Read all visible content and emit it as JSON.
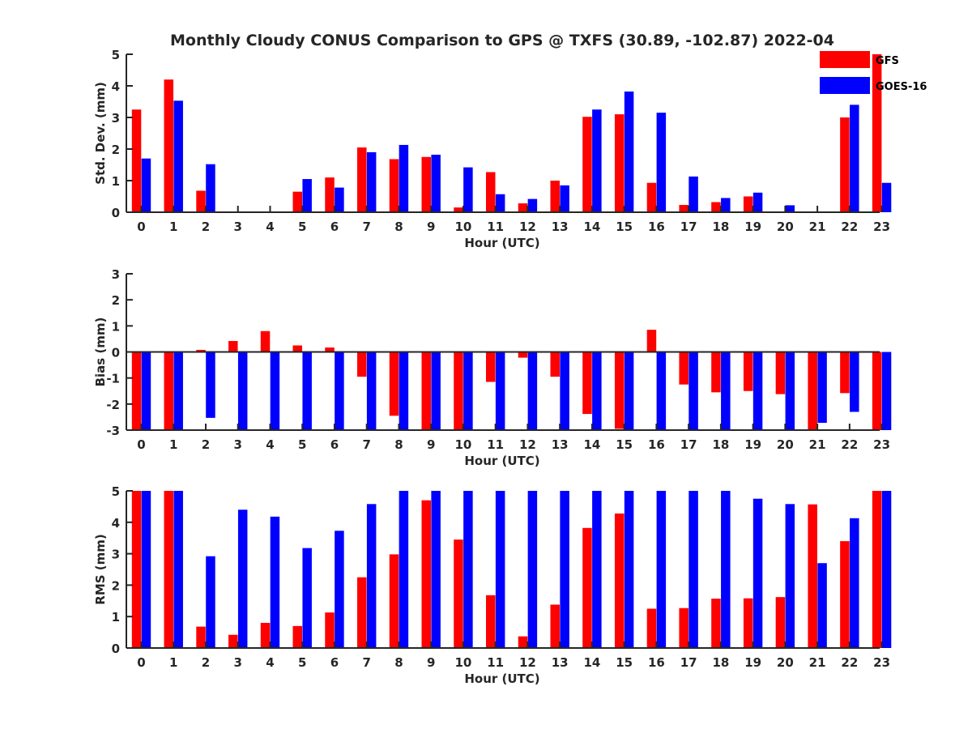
{
  "figure_title": "Monthly Cloudy CONUS Comparison to GPS @ TXFS (30.89, -102.87) 2022-04",
  "legend": {
    "entries": [
      {
        "name": "GFS",
        "color": "#ff0000"
      },
      {
        "name": "GOES-16",
        "color": "#0000ff"
      }
    ],
    "placement": "top-right"
  },
  "chart_data": [
    {
      "type": "bar",
      "title": "Monthly Cloudy CONUS Comparison to GPS @ TXFS (30.89, -102.87) 2022-04",
      "xlabel": "Hour (UTC)",
      "ylabel": "Std. Dev. (mm)",
      "ylim": [
        0,
        5
      ],
      "yticks": [
        0,
        1,
        2,
        3,
        4,
        5
      ],
      "categories": [
        "0",
        "1",
        "2",
        "3",
        "4",
        "5",
        "6",
        "7",
        "8",
        "9",
        "10",
        "11",
        "12",
        "13",
        "14",
        "15",
        "16",
        "17",
        "18",
        "19",
        "20",
        "21",
        "22",
        "23"
      ],
      "series": [
        {
          "name": "GFS",
          "color": "#ff0000",
          "values": [
            3.25,
            4.2,
            0.68,
            0,
            0,
            0.65,
            1.1,
            2.05,
            1.68,
            1.75,
            0.15,
            1.27,
            0.28,
            1.0,
            3.02,
            3.1,
            0.93,
            0.23,
            0.32,
            0.5,
            0,
            0,
            3.0,
            5.0
          ]
        },
        {
          "name": "GOES-16",
          "color": "#0000ff",
          "values": [
            1.7,
            3.53,
            1.52,
            0,
            0,
            1.05,
            0.78,
            1.9,
            2.13,
            1.82,
            1.42,
            0.57,
            0.42,
            0.85,
            3.25,
            3.82,
            3.15,
            1.13,
            0.45,
            0.62,
            0.22,
            0,
            3.4,
            0.93
          ]
        }
      ]
    },
    {
      "type": "bar",
      "xlabel": "Hour (UTC)",
      "ylabel": "Bias (mm)",
      "ylim": [
        -3,
        3
      ],
      "yticks": [
        -3,
        -2,
        -1,
        0,
        1,
        2,
        3
      ],
      "zero_line": true,
      "categories": [
        "0",
        "1",
        "2",
        "3",
        "4",
        "5",
        "6",
        "7",
        "8",
        "9",
        "10",
        "11",
        "12",
        "13",
        "14",
        "15",
        "16",
        "17",
        "18",
        "19",
        "20",
        "21",
        "22",
        "23"
      ],
      "series": [
        {
          "name": "GFS",
          "color": "#ff0000",
          "values": [
            -3.0,
            -3.0,
            0.08,
            0.42,
            0.8,
            0.25,
            0.17,
            -0.95,
            -2.45,
            -3.0,
            -3.0,
            -1.15,
            -0.22,
            -0.95,
            -2.38,
            -2.95,
            0.85,
            -1.25,
            -1.55,
            -1.5,
            -1.62,
            -3.0,
            -1.58,
            -3.0
          ]
        },
        {
          "name": "GOES-16",
          "color": "#0000ff",
          "values": [
            -3.0,
            -3.0,
            -2.53,
            -3.0,
            -3.0,
            -3.0,
            -3.0,
            -3.0,
            -3.0,
            -3.0,
            -3.0,
            -3.0,
            -3.0,
            -3.0,
            -3.0,
            -3.0,
            -3.0,
            -3.0,
            -3.0,
            -3.0,
            -3.0,
            -2.72,
            -2.3,
            -3.0
          ]
        }
      ]
    },
    {
      "type": "bar",
      "xlabel": "Hour (UTC)",
      "ylabel": "RMS (mm)",
      "ylim": [
        0,
        5
      ],
      "yticks": [
        0,
        1,
        2,
        3,
        4,
        5
      ],
      "categories": [
        "0",
        "1",
        "2",
        "3",
        "4",
        "5",
        "6",
        "7",
        "8",
        "9",
        "10",
        "11",
        "12",
        "13",
        "14",
        "15",
        "16",
        "17",
        "18",
        "19",
        "20",
        "21",
        "22",
        "23"
      ],
      "series": [
        {
          "name": "GFS",
          "color": "#ff0000",
          "values": [
            5.0,
            5.0,
            0.68,
            0.42,
            0.8,
            0.7,
            1.13,
            2.25,
            2.98,
            4.7,
            3.45,
            1.68,
            0.37,
            1.38,
            3.82,
            4.28,
            1.25,
            1.27,
            1.57,
            1.58,
            1.62,
            4.57,
            3.4,
            5.0
          ]
        },
        {
          "name": "GOES-16",
          "color": "#0000ff",
          "values": [
            5.0,
            5.0,
            2.92,
            4.4,
            4.18,
            3.18,
            3.73,
            4.58,
            5.0,
            5.0,
            5.0,
            5.0,
            5.0,
            5.0,
            5.0,
            5.0,
            5.0,
            5.0,
            5.0,
            4.75,
            4.58,
            2.7,
            4.13,
            5.0
          ]
        }
      ]
    }
  ]
}
